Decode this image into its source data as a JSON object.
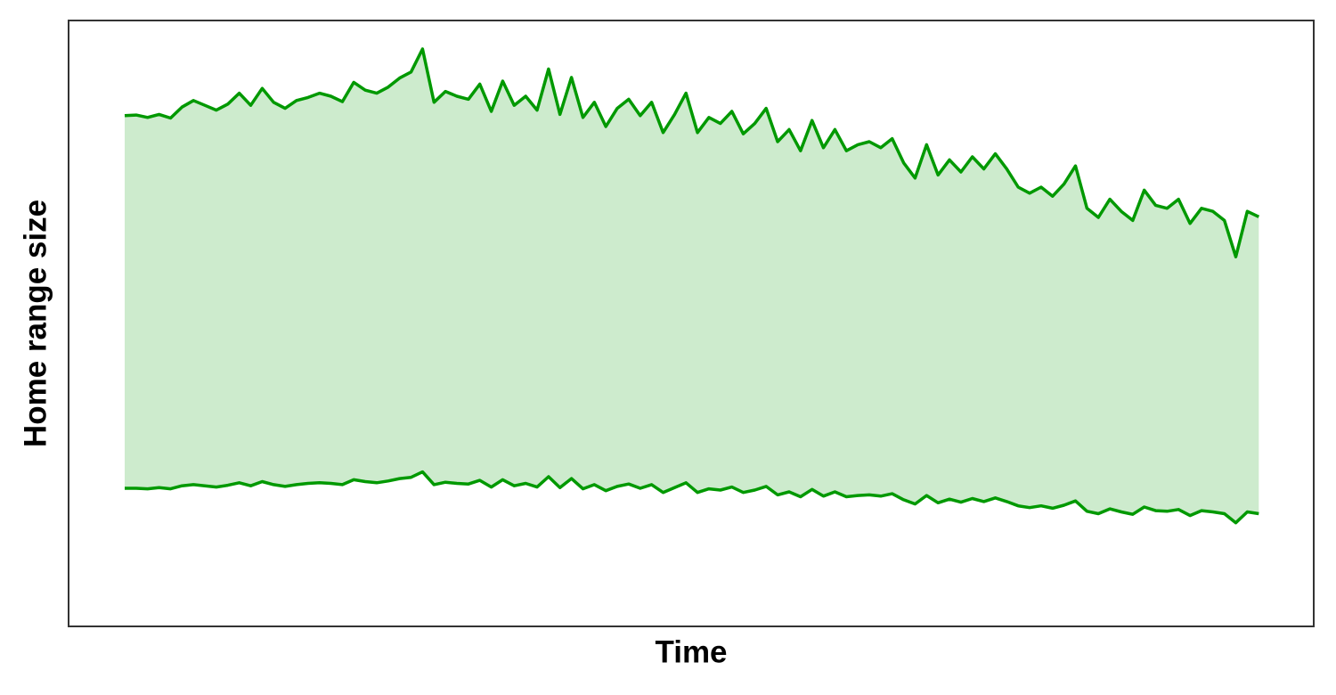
{
  "chart_data": {
    "type": "band",
    "xlabel": "Time",
    "ylabel": "Home range size",
    "fill": "#cdebcd",
    "xlim": [
      -3.9,
      104.8
    ],
    "ylim": [
      0,
      100
    ],
    "x": [
      1,
      2,
      3,
      4,
      5,
      6,
      7,
      8,
      9,
      10,
      11,
      12,
      13,
      14,
      15,
      16,
      17,
      18,
      19,
      20,
      21,
      22,
      23,
      24,
      25,
      26,
      27,
      28,
      29,
      30,
      31,
      32,
      33,
      34,
      35,
      36,
      37,
      38,
      39,
      40,
      41,
      42,
      43,
      44,
      45,
      46,
      47,
      48,
      49,
      50,
      51,
      52,
      53,
      54,
      55,
      56,
      57,
      58,
      59,
      60,
      61,
      62,
      63,
      64,
      65,
      66,
      67,
      68,
      69,
      70,
      71,
      72,
      73,
      74,
      75,
      76,
      77,
      78,
      79,
      80,
      81,
      82,
      83,
      84,
      85,
      86,
      87,
      88,
      89,
      90,
      91,
      92,
      93,
      94,
      95,
      96,
      97,
      98,
      99,
      100
    ],
    "series": [
      {
        "color": "#009900",
        "values": [
          84.3,
          84.4,
          84.0,
          84.5,
          83.9,
          85.7,
          86.8,
          86.0,
          85.2,
          86.2,
          88.0,
          86.0,
          88.8,
          86.5,
          85.5,
          86.8,
          87.3,
          88.0,
          87.5,
          86.6,
          89.8,
          88.5,
          88.0,
          89.0,
          90.5,
          91.5,
          95.3,
          86.5,
          88.3,
          87.5,
          87.0,
          89.5,
          85.0,
          90.0,
          86.0,
          87.5,
          85.2,
          92.0,
          84.5,
          90.6,
          84.0,
          86.5,
          82.5,
          85.5,
          87.0,
          84.3,
          86.5,
          81.5,
          84.5,
          88.0,
          81.5,
          84.0,
          83.0,
          85.0,
          81.3,
          83.0,
          85.5,
          80.0,
          82.0,
          78.5,
          83.5,
          79.0,
          82.0,
          78.5,
          79.5,
          80.0,
          79.0,
          80.5,
          76.5,
          74.0,
          79.5,
          74.5,
          77.0,
          75.0,
          77.5,
          75.5,
          78.0,
          75.5,
          72.5,
          71.5,
          72.5,
          71.0,
          73.0,
          76.0,
          69.0,
          67.5,
          70.5,
          68.5,
          67.0,
          72.0,
          69.5,
          69.0,
          70.5,
          66.5,
          69.0,
          68.5,
          67.0,
          61.0,
          68.5,
          67.6
        ]
      },
      {
        "color": "#009900",
        "values": [
          22.8,
          22.8,
          22.7,
          22.9,
          22.7,
          23.2,
          23.4,
          23.2,
          23.0,
          23.3,
          23.7,
          23.2,
          23.9,
          23.4,
          23.1,
          23.4,
          23.6,
          23.7,
          23.6,
          23.4,
          24.2,
          23.9,
          23.7,
          24.0,
          24.4,
          24.6,
          25.5,
          23.4,
          23.8,
          23.6,
          23.5,
          24.1,
          23.0,
          24.2,
          23.2,
          23.6,
          23.0,
          24.7,
          22.9,
          24.4,
          22.7,
          23.4,
          22.4,
          23.1,
          23.5,
          22.8,
          23.4,
          22.1,
          22.9,
          23.7,
          22.1,
          22.7,
          22.5,
          23.0,
          22.1,
          22.5,
          23.1,
          21.7,
          22.2,
          21.4,
          22.6,
          21.5,
          22.2,
          21.4,
          21.6,
          21.7,
          21.5,
          21.9,
          20.9,
          20.2,
          21.6,
          20.4,
          21.0,
          20.5,
          21.1,
          20.6,
          21.2,
          20.6,
          19.9,
          19.6,
          19.9,
          19.5,
          20.0,
          20.7,
          19.0,
          18.6,
          19.4,
          18.9,
          18.5,
          19.7,
          19.1,
          19.0,
          19.3,
          18.3,
          19.1,
          18.9,
          18.6,
          17.1,
          18.9,
          18.6
        ]
      }
    ]
  }
}
